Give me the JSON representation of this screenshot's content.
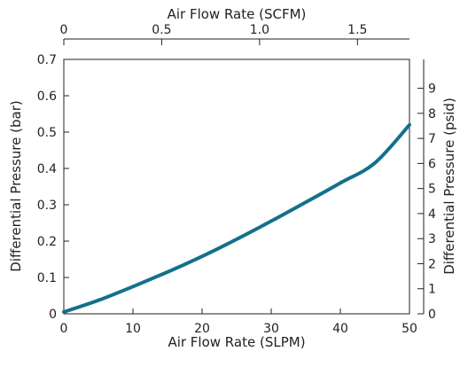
{
  "chart_data": {
    "type": "line",
    "title": "",
    "xlabel": "Air Flow Rate (SLPM)",
    "ylabel": "Differential Pressure (bar)",
    "x2label": "Air Flow Rate (SCFM)",
    "y2label": "Differential Pressure (psid)",
    "xlim": [
      0,
      50
    ],
    "ylim": [
      0,
      0.7
    ],
    "x2lim": [
      0,
      1.7657
    ],
    "y2lim": [
      0,
      10.1526
    ],
    "xticks": [
      0,
      10,
      20,
      30,
      40,
      50
    ],
    "yticks": [
      0,
      0.1,
      0.2,
      0.3,
      0.4,
      0.5,
      0.6,
      0.7
    ],
    "x2ticks": [
      0,
      0.5,
      1.0,
      1.5
    ],
    "y2ticks": [
      0,
      1,
      2,
      3,
      4,
      5,
      6,
      7,
      8,
      9
    ],
    "xtick_labels": [
      "0",
      "10",
      "20",
      "30",
      "40",
      "50"
    ],
    "ytick_labels": [
      "0",
      "0.1",
      "0.2",
      "0.3",
      "0.4",
      "0.5",
      "0.6",
      "0.7"
    ],
    "x2tick_labels": [
      "0",
      "0.5",
      "1.0",
      "1.5"
    ],
    "y2tick_labels": [
      "0",
      "1",
      "2",
      "3",
      "4",
      "5",
      "6",
      "7",
      "8",
      "9"
    ],
    "grid": false,
    "line_color": "#14708c",
    "series": [
      {
        "x": [
          0,
          5,
          10,
          15,
          20,
          25,
          30,
          35,
          40,
          45,
          50
        ],
        "values": [
          0.005,
          0.037,
          0.075,
          0.115,
          0.158,
          0.205,
          0.255,
          0.307,
          0.36,
          0.415,
          0.52
        ]
      }
    ]
  }
}
